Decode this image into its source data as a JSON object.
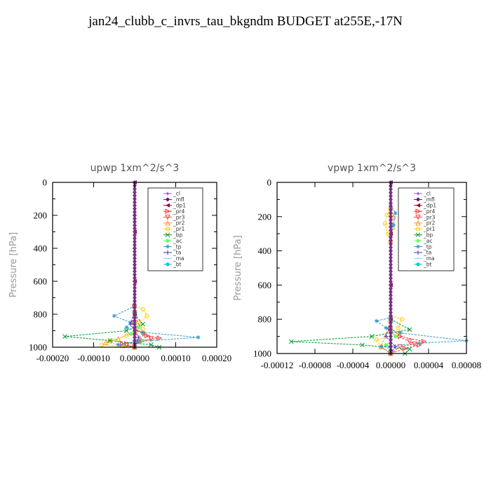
{
  "title": "jan24_clubb_c_invrs_tau_bkgndm  BUDGET at255E,-17N",
  "chart_data": [
    {
      "type": "line",
      "title": "upwp   1xm^2/s^3",
      "ylabel": "Pressure [hPa]",
      "xlim": [
        -0.0002,
        0.0002
      ],
      "ylim": [
        1000,
        0
      ],
      "x_ticks": [
        "-0.00020",
        "-0.00010",
        "0.00000",
        "0.00010",
        "0.00020"
      ],
      "y_ticks": [
        "0",
        "200",
        "400",
        "600",
        "800",
        "1000"
      ],
      "legend_position": "upper-right",
      "series": [
        {
          "name": "_cl",
          "color": "#9955ff",
          "marker": "star",
          "points": [
            [
              0,
              0
            ],
            [
              0,
              200
            ],
            [
              0,
              400
            ],
            [
              0,
              600
            ],
            [
              0,
              800
            ],
            [
              0,
              900
            ],
            [
              0,
              1000
            ]
          ]
        },
        {
          "name": "_mfl",
          "color": "#660099",
          "marker": "diamond",
          "points": [
            [
              0,
              0
            ],
            [
              0,
              200
            ],
            [
              0,
              400
            ],
            [
              0,
              600
            ],
            [
              0,
              800
            ],
            [
              0,
              1000
            ]
          ]
        },
        {
          "name": "_dp1",
          "color": "#990033",
          "marker": "triangle-left",
          "points": [
            [
              0,
              0
            ],
            [
              0,
              300
            ],
            [
              0,
              600
            ],
            [
              0,
              800
            ],
            [
              0,
              1000
            ]
          ]
        },
        {
          "name": "_pr4",
          "color": "#ff3333",
          "marker": "triangle-right",
          "points": [
            [
              0,
              750
            ],
            [
              0,
              850
            ],
            [
              5e-06,
              900
            ],
            [
              3e-05,
              930
            ],
            [
              6e-05,
              945
            ],
            [
              2e-05,
              960
            ],
            [
              -3e-05,
              980
            ],
            [
              0,
              1000
            ]
          ]
        },
        {
          "name": "_pr3",
          "color": "#ff4444",
          "marker": "triangle-down",
          "points": [
            [
              0,
              800
            ],
            [
              2e-05,
              920
            ],
            [
              4e-05,
              950
            ],
            [
              1e-05,
              965
            ],
            [
              -2e-05,
              985
            ],
            [
              0,
              1000
            ]
          ]
        },
        {
          "name": "_pr2",
          "color": "#ff9933",
          "marker": "triangle-up",
          "points": [
            [
              0,
              900
            ],
            [
              -4e-05,
              950
            ],
            [
              -7e-05,
              970
            ],
            [
              -3e-05,
              990
            ],
            [
              0,
              1000
            ]
          ]
        },
        {
          "name": "_pr1",
          "color": "#ffcc00",
          "marker": "circle-open",
          "points": [
            [
              0,
              750
            ],
            [
              2e-05,
              770
            ],
            [
              3e-05,
              810
            ],
            [
              1e-05,
              850
            ],
            [
              2e-05,
              890
            ],
            [
              -2e-05,
              930
            ],
            [
              -6e-05,
              960
            ],
            [
              -8e-05,
              985
            ],
            [
              0,
              1000
            ]
          ]
        },
        {
          "name": "_bp",
          "color": "#009933",
          "marker": "x",
          "points": [
            [
              0,
              800
            ],
            [
              2e-05,
              860
            ],
            [
              -2e-05,
              900
            ],
            [
              -0.00017,
              935
            ],
            [
              -6e-05,
              960
            ],
            [
              4e-05,
              985
            ],
            [
              6e-05,
              1000
            ]
          ]
        },
        {
          "name": "_ac",
          "color": "#66ff66",
          "marker": "circle",
          "points": [
            [
              0,
              850
            ],
            [
              1e-05,
              880
            ],
            [
              -1e-05,
              920
            ],
            [
              2e-05,
              960
            ],
            [
              0,
              1000
            ]
          ]
        },
        {
          "name": "_tp",
          "color": "#3399cc",
          "marker": "asterisk",
          "points": [
            [
              0,
              750
            ],
            [
              -5e-05,
              810
            ],
            [
              -1e-05,
              850
            ],
            [
              -2e-05,
              880
            ],
            [
              2e-05,
              910
            ],
            [
              0.000155,
              940
            ],
            [
              1e-05,
              965
            ],
            [
              -4e-05,
              985
            ],
            [
              0,
              1000
            ]
          ]
        },
        {
          "name": "_ta",
          "color": "#3333cc",
          "marker": "plus",
          "points": [
            [
              0,
              780
            ],
            [
              -1e-05,
              860
            ],
            [
              1e-05,
              940
            ],
            [
              0,
              1000
            ]
          ]
        },
        {
          "name": "_ma",
          "color": "#99ccff",
          "marker": "dash",
          "points": [
            [
              0,
              0
            ],
            [
              0,
              500
            ],
            [
              0,
              1000
            ]
          ]
        },
        {
          "name": "_bt",
          "color": "#00cccc",
          "marker": "circle",
          "points": [
            [
              0,
              0
            ],
            [
              0,
              1000
            ]
          ]
        }
      ]
    },
    {
      "type": "line",
      "title": "vpwp   1xm^2/s^3",
      "ylabel": "Pressure [hPa]",
      "xlim": [
        -0.00012,
        8e-05
      ],
      "ylim": [
        1000,
        0
      ],
      "x_ticks": [
        "-0.00012",
        "-0.00008",
        "-0.00004",
        "0.00000",
        "0.00004",
        "0.00008"
      ],
      "y_ticks": [
        "0",
        "200",
        "400",
        "600",
        "800",
        "1000"
      ],
      "legend_position": "upper-right",
      "series": [
        {
          "name": "_cl",
          "color": "#9955ff",
          "marker": "star",
          "points": [
            [
              0,
              0
            ],
            [
              0,
              200
            ],
            [
              0,
              400
            ],
            [
              0,
              600
            ],
            [
              0,
              800
            ],
            [
              0,
              1000
            ]
          ]
        },
        {
          "name": "_mfl",
          "color": "#660099",
          "marker": "diamond",
          "points": [
            [
              0,
              0
            ],
            [
              0,
              200
            ],
            [
              0,
              400
            ],
            [
              0,
              600
            ],
            [
              0,
              800
            ],
            [
              0,
              1000
            ]
          ]
        },
        {
          "name": "_dp1",
          "color": "#990033",
          "marker": "triangle-left",
          "points": [
            [
              0,
              0
            ],
            [
              0,
              300
            ],
            [
              0,
              600
            ],
            [
              0,
              800
            ],
            [
              0,
              1000
            ]
          ]
        },
        {
          "name": "_pr4",
          "color": "#ff3333",
          "marker": "triangle-right",
          "points": [
            [
              0,
              850
            ],
            [
              1e-05,
              900
            ],
            [
              3.5e-05,
              930
            ],
            [
              3e-05,
              950
            ],
            [
              1.5e-05,
              970
            ],
            [
              0,
              1000
            ]
          ]
        },
        {
          "name": "_pr3",
          "color": "#ff4444",
          "marker": "triangle-down",
          "points": [
            [
              0,
              880
            ],
            [
              2e-05,
              930
            ],
            [
              2.5e-05,
              945
            ],
            [
              1e-05,
              960
            ],
            [
              0,
              1000
            ]
          ]
        },
        {
          "name": "_pr2",
          "color": "#ff9933",
          "marker": "triangle-up",
          "points": [
            [
              0,
              140
            ],
            [
              3e-06,
              200
            ],
            [
              2e-06,
              260
            ],
            [
              0,
              340
            ],
            [
              0,
              800
            ],
            [
              -1e-05,
              960
            ],
            [
              0,
              1000
            ]
          ]
        },
        {
          "name": "_pr1",
          "color": "#ffcc00",
          "marker": "circle-open",
          "points": [
            [
              0,
              150
            ],
            [
              -4e-06,
              190
            ],
            [
              -6e-06,
              240
            ],
            [
              -3e-06,
              300
            ],
            [
              0,
              340
            ],
            [
              0,
              780
            ],
            [
              1.2e-05,
              800
            ],
            [
              8e-06,
              850
            ],
            [
              1e-05,
              880
            ],
            [
              -1.5e-05,
              920
            ],
            [
              -1e-05,
              960
            ],
            [
              0,
              1000
            ]
          ]
        },
        {
          "name": "_bp",
          "color": "#009933",
          "marker": "x",
          "points": [
            [
              0,
              800
            ],
            [
              2e-05,
              860
            ],
            [
              -2e-05,
              900
            ],
            [
              -0.000105,
              930
            ],
            [
              -3e-05,
              950
            ],
            [
              2e-05,
              975
            ],
            [
              1.5e-05,
              1000
            ]
          ]
        },
        {
          "name": "_ac",
          "color": "#66ff66",
          "marker": "circle",
          "points": [
            [
              0,
              850
            ],
            [
              5e-06,
              900
            ],
            [
              -5e-06,
              950
            ],
            [
              0,
              1000
            ]
          ]
        },
        {
          "name": "_tp",
          "color": "#3399cc",
          "marker": "asterisk",
          "points": [
            [
              0,
              130
            ],
            [
              5e-06,
              180
            ],
            [
              3e-06,
              250
            ],
            [
              0,
              320
            ],
            [
              0,
              790
            ],
            [
              -1.5e-05,
              810
            ],
            [
              -5e-06,
              850
            ],
            [
              1e-05,
              880
            ],
            [
              8e-05,
              925
            ],
            [
              3e-05,
              940
            ],
            [
              -1e-05,
              960
            ],
            [
              0,
              1000
            ]
          ]
        },
        {
          "name": "_ta",
          "color": "#3333cc",
          "marker": "plus",
          "points": [
            [
              0,
              820
            ],
            [
              -5e-06,
              900
            ],
            [
              5e-06,
              960
            ],
            [
              0,
              1000
            ]
          ]
        },
        {
          "name": "_ma",
          "color": "#99ccff",
          "marker": "dash",
          "points": [
            [
              0,
              0
            ],
            [
              0,
              500
            ],
            [
              0,
              1000
            ]
          ]
        },
        {
          "name": "_bt",
          "color": "#00cccc",
          "marker": "circle",
          "points": [
            [
              0,
              0
            ],
            [
              0,
              1000
            ]
          ]
        }
      ]
    }
  ]
}
